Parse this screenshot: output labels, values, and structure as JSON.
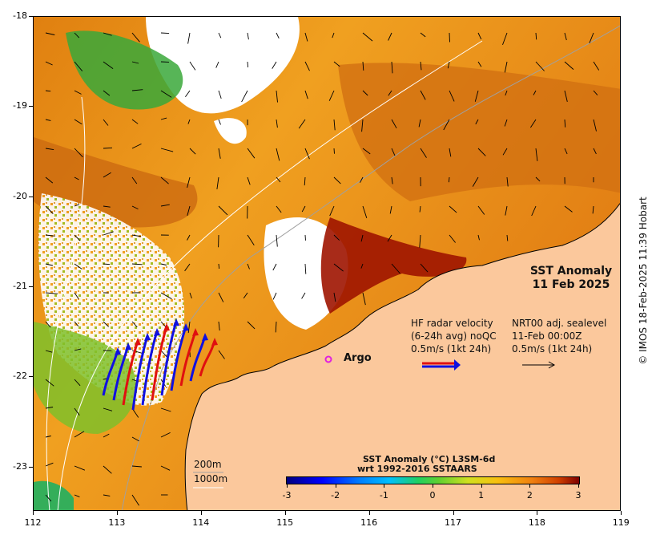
{
  "map": {
    "title_line1": "SST Anomaly",
    "title_line2": "11 Feb 2025",
    "lat_ticks": [
      "-18",
      "-19",
      "-20",
      "-21",
      "-22",
      "-23"
    ],
    "lon_ticks": [
      "112",
      "113",
      "114",
      "115",
      "116",
      "117",
      "118",
      "119"
    ],
    "argo_label": "Argo",
    "depth_200": "200m",
    "depth_1000": "1000m",
    "colors": {
      "land": "#fbc89c",
      "anomaly_low": "#f2a818",
      "anomaly_high": "#9e1400",
      "radar_red": "#e01010",
      "radar_blue": "#1010e0",
      "argo": "#e020e0"
    }
  },
  "legend": {
    "hf_line1": "HF radar velocity",
    "hf_line2": "(6-24h avg) noQC",
    "hf_line3": "0.5m/s (1kt 24h)",
    "nrt_line1": "NRT00 adj. sealevel",
    "nrt_line2": "11-Feb 00:00Z",
    "nrt_line3": "0.5m/s (1kt 24h)"
  },
  "colorbar": {
    "title_line1": "SST Anomaly (°C) L3SM-6d",
    "title_line2": "wrt 1992-2016 SSTAARS",
    "ticks": [
      "-3",
      "-2",
      "-1",
      "0",
      "1",
      "2",
      "3"
    ],
    "range": [
      -3,
      3
    ]
  },
  "credit": "© IMOS 18-Feb-2025 11:39 Hobart"
}
